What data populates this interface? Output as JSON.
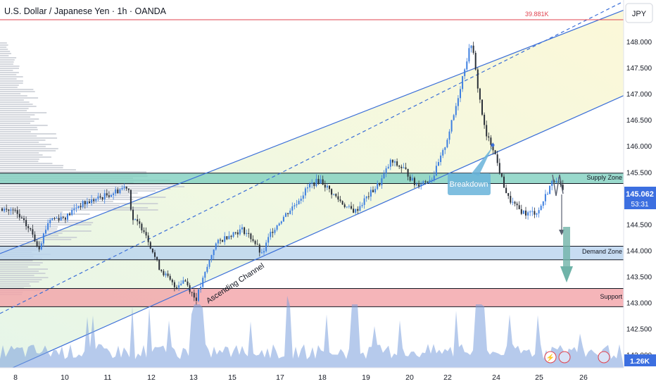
{
  "header": {
    "symbol": "U.S. Dollar / Japanese Yen · 1h · OANDA"
  },
  "currency_label": "JPY",
  "top_level_label": "39.881K",
  "zones": {
    "supply": "Supply Zone",
    "demand": "Demand Zone",
    "support": "Support"
  },
  "annotations": {
    "breakdown": "Breakdown",
    "ascending_channel": "Ascending Channel"
  },
  "price_badge": {
    "price": "145.062",
    "countdown": "53:31"
  },
  "volume_badge": "1.26K",
  "colors": {
    "supply_zone": "#7fcfbf",
    "demand_zone": "#b9d3ef",
    "support_zone": "#f2a3a8",
    "channel_line": "#3b6fd8",
    "candle_up": "#3d7fe0",
    "candle_down": "#2b3038",
    "price_badge": "#3c6fe0",
    "breakdown_box": "#69b3d9"
  },
  "chart_data": {
    "type": "candlestick",
    "title": "U.S. Dollar / Japanese Yen · 1h · OANDA",
    "x_ticks": [
      "8",
      "10",
      "11",
      "12",
      "13",
      "15",
      "17",
      "18",
      "19",
      "20",
      "22",
      "24",
      "25",
      "26"
    ],
    "y_ticks": [
      "148.000",
      "147.500",
      "147.000",
      "146.500",
      "146.000",
      "145.500",
      "144.500",
      "144.000",
      "143.500",
      "143.000",
      "142.500",
      "142.000"
    ],
    "ylim": [
      141.9,
      148.5
    ],
    "zones": [
      {
        "name": "Supply Zone",
        "from": 145.28,
        "to": 145.48
      },
      {
        "name": "Demand Zone",
        "from": 143.82,
        "to": 144.08
      },
      {
        "name": "Support",
        "from": 142.92,
        "to": 143.27
      }
    ],
    "last_price": 145.062,
    "price_path": [
      {
        "x": "8",
        "price": 144.8
      },
      {
        "x": "10",
        "price": 144.7
      },
      {
        "x": "11",
        "price": 145.2
      },
      {
        "x": "12",
        "price": 144.2
      },
      {
        "x": "13",
        "price": 143.2
      },
      {
        "x": "15",
        "price": 144.4
      },
      {
        "x": "17",
        "price": 144.9
      },
      {
        "x": "18",
        "price": 145.2
      },
      {
        "x": "19",
        "price": 144.7
      },
      {
        "x": "20",
        "price": 145.2
      },
      {
        "x": "22",
        "price": 146.6
      },
      {
        "x": "23",
        "price": 148.0
      },
      {
        "x": "24",
        "price": 145.3
      },
      {
        "x": "25",
        "price": 144.8
      },
      {
        "x": "25",
        "price": 145.4
      }
    ]
  }
}
